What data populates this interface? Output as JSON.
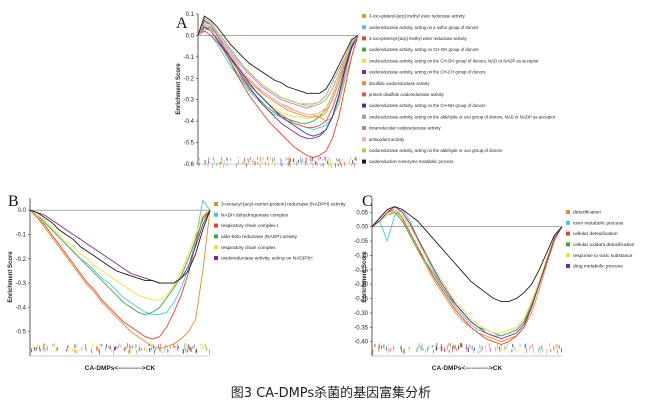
{
  "caption": "图3 CA-DMPs杀菌的基因富集分析",
  "chart_data": [
    {
      "panel": "A",
      "type": "line",
      "ylabel": "Enrichment Score",
      "xlabel": "",
      "ylim": [
        -0.6,
        0.1
      ],
      "yticks": [
        "0.1",
        "0.0",
        "-0.1",
        "-0.2",
        "-0.3",
        "-0.4",
        "-0.5",
        "-0.6"
      ],
      "legend_position": "right",
      "x": [
        0,
        0.04,
        0.08,
        0.12,
        0.16,
        0.2,
        0.24,
        0.28,
        0.32,
        0.36,
        0.4,
        0.44,
        0.48,
        0.52,
        0.56,
        0.6,
        0.64,
        0.68,
        0.72,
        0.76,
        0.8,
        0.84,
        0.88,
        0.92,
        0.96,
        1.0
      ],
      "series": [
        {
          "name": "3-oxo-glutaryl-[acp] methyl ester reductase activity",
          "color": "#d9a21a",
          "values": [
            0,
            0.03,
            0.04,
            0.0,
            -0.05,
            -0.1,
            -0.14,
            -0.18,
            -0.21,
            -0.24,
            -0.26,
            -0.28,
            -0.3,
            -0.32,
            -0.33,
            -0.35,
            -0.36,
            -0.37,
            -0.37,
            -0.38,
            -0.4,
            -0.38,
            -0.32,
            -0.2,
            -0.1,
            0
          ]
        },
        {
          "name": "oxidoreductase activity, acting on a sulfur group of donors",
          "color": "#4ec3dd",
          "values": [
            0,
            0.02,
            0.0,
            -0.04,
            -0.09,
            -0.14,
            -0.18,
            -0.22,
            -0.26,
            -0.29,
            -0.32,
            -0.35,
            -0.37,
            -0.38,
            -0.4,
            -0.41,
            -0.42,
            -0.43,
            -0.44,
            -0.43,
            -0.42,
            -0.38,
            -0.3,
            -0.18,
            -0.06,
            0
          ]
        },
        {
          "name": "3-oxo-pimeloyl-[acp] methyl ester reductase activity",
          "color": "#e0432f",
          "values": [
            0,
            0.06,
            0.05,
            0.0,
            -0.06,
            -0.12,
            -0.18,
            -0.23,
            -0.28,
            -0.32,
            -0.36,
            -0.4,
            -0.43,
            -0.46,
            -0.49,
            -0.52,
            -0.54,
            -0.56,
            -0.57,
            -0.56,
            -0.54,
            -0.48,
            -0.38,
            -0.24,
            -0.1,
            0
          ]
        },
        {
          "name": "oxidoreductase activity, acting on CH-OH group of donors",
          "color": "#3fa642",
          "values": [
            0,
            0.04,
            0.03,
            -0.02,
            -0.07,
            -0.12,
            -0.17,
            -0.21,
            -0.25,
            -0.28,
            -0.31,
            -0.34,
            -0.36,
            -0.38,
            -0.39,
            -0.4,
            -0.41,
            -0.41,
            -0.4,
            -0.38,
            -0.34,
            -0.28,
            -0.2,
            -0.12,
            -0.04,
            0
          ]
        },
        {
          "name": "oxidoreductase activity, acting on the CH-OH group of donors, NAD or NADP as acceptor",
          "color": "#f3dc3a",
          "values": [
            0,
            0.05,
            0.04,
            0.0,
            -0.05,
            -0.1,
            -0.15,
            -0.19,
            -0.23,
            -0.26,
            -0.29,
            -0.32,
            -0.34,
            -0.36,
            -0.37,
            -0.38,
            -0.38,
            -0.39,
            -0.38,
            -0.37,
            -0.35,
            -0.3,
            -0.22,
            -0.13,
            -0.05,
            0
          ]
        },
        {
          "name": "oxidoreductase activity, acting on the CH-CH group of donors",
          "color": "#7a2b8c",
          "values": [
            0,
            0.07,
            0.05,
            0.0,
            -0.05,
            -0.1,
            -0.15,
            -0.2,
            -0.24,
            -0.28,
            -0.32,
            -0.35,
            -0.38,
            -0.41,
            -0.43,
            -0.45,
            -0.47,
            -0.48,
            -0.48,
            -0.47,
            -0.44,
            -0.38,
            -0.28,
            -0.16,
            -0.06,
            0
          ]
        },
        {
          "name": "disulfide oxidoreductase activity",
          "color": "#ef8a2a",
          "values": [
            0,
            0.03,
            0.02,
            -0.02,
            -0.06,
            -0.1,
            -0.14,
            -0.18,
            -0.21,
            -0.24,
            -0.27,
            -0.29,
            -0.31,
            -0.33,
            -0.35,
            -0.36,
            -0.37,
            -0.38,
            -0.38,
            -0.38,
            -0.36,
            -0.3,
            -0.22,
            -0.12,
            -0.04,
            0
          ]
        },
        {
          "name": "protein disulfide oxidoreductase activity",
          "color": "#e85050",
          "values": [
            0,
            0.02,
            0.0,
            -0.03,
            -0.07,
            -0.11,
            -0.15,
            -0.19,
            -0.23,
            -0.26,
            -0.29,
            -0.32,
            -0.35,
            -0.37,
            -0.39,
            -0.41,
            -0.42,
            -0.43,
            -0.43,
            -0.42,
            -0.4,
            -0.34,
            -0.25,
            -0.14,
            -0.05,
            0
          ]
        },
        {
          "name": "oxidoreductase activity, acting on the CH-NH group of donors",
          "color": "#2b3f9a",
          "values": [
            0,
            0.04,
            0.02,
            -0.02,
            -0.06,
            -0.1,
            -0.14,
            -0.18,
            -0.22,
            -0.26,
            -0.29,
            -0.32,
            -0.35,
            -0.38,
            -0.4,
            -0.42,
            -0.44,
            -0.46,
            -0.47,
            -0.46,
            -0.44,
            -0.38,
            -0.28,
            -0.15,
            -0.05,
            0
          ]
        },
        {
          "name": "oxidoreductase activity, acting on the aldehyde or oxo group of donors, NAD or NADP as acceptor",
          "color": "#9e9e9e",
          "values": [
            0,
            0.08,
            0.06,
            0.02,
            -0.02,
            -0.06,
            -0.1,
            -0.14,
            -0.17,
            -0.2,
            -0.23,
            -0.25,
            -0.27,
            -0.29,
            -0.3,
            -0.31,
            -0.32,
            -0.32,
            -0.32,
            -0.31,
            -0.28,
            -0.22,
            -0.16,
            -0.1,
            -0.04,
            0
          ]
        },
        {
          "name": "intramolecular oxidoreductase activity",
          "color": "#c07ad8",
          "values": [
            0,
            0.05,
            0.04,
            0.0,
            -0.04,
            -0.08,
            -0.12,
            -0.15,
            -0.18,
            -0.21,
            -0.24,
            -0.26,
            -0.28,
            -0.3,
            -0.31,
            -0.32,
            -0.33,
            -0.34,
            -0.33,
            -0.32,
            -0.3,
            -0.25,
            -0.18,
            -0.1,
            -0.03,
            0
          ]
        },
        {
          "name": "antioxidant activity",
          "color": "#f0a8c8",
          "values": [
            0,
            0.03,
            0.02,
            -0.01,
            -0.05,
            -0.09,
            -0.13,
            -0.17,
            -0.2,
            -0.23,
            -0.26,
            -0.28,
            -0.3,
            -0.32,
            -0.34,
            -0.35,
            -0.36,
            -0.37,
            -0.37,
            -0.36,
            -0.34,
            -0.28,
            -0.2,
            -0.11,
            -0.04,
            0
          ]
        },
        {
          "name": "oxidoreductase activity, acting on the aldehyde or oxo group of donors",
          "color": "#b5cc3a",
          "values": [
            0,
            0.06,
            0.05,
            0.01,
            -0.03,
            -0.07,
            -0.11,
            -0.14,
            -0.17,
            -0.2,
            -0.23,
            -0.25,
            -0.27,
            -0.29,
            -0.3,
            -0.31,
            -0.32,
            -0.33,
            -0.33,
            -0.32,
            -0.3,
            -0.25,
            -0.18,
            -0.1,
            -0.03,
            0
          ]
        },
        {
          "name": "oxidoreduction coenzyme metabolic process",
          "color": "#1a1a1a",
          "values": [
            0,
            0.09,
            0.07,
            0.04,
            0.0,
            -0.04,
            -0.07,
            -0.1,
            -0.13,
            -0.15,
            -0.17,
            -0.19,
            -0.21,
            -0.22,
            -0.24,
            -0.25,
            -0.26,
            -0.27,
            -0.27,
            -0.27,
            -0.25,
            -0.2,
            -0.14,
            -0.08,
            -0.02,
            0
          ]
        }
      ]
    },
    {
      "panel": "B",
      "type": "line",
      "ylabel": "Enrichment Score",
      "xlabel": "CA-DMPs<----------->CK",
      "ylim": [
        -0.6,
        0.05
      ],
      "yticks": [
        "0.0",
        "-0.1",
        "-0.2",
        "-0.3",
        "-0.4",
        "-0.5"
      ],
      "legend_position": "right",
      "x": [
        0,
        0.04,
        0.08,
        0.12,
        0.16,
        0.2,
        0.24,
        0.28,
        0.32,
        0.36,
        0.4,
        0.44,
        0.48,
        0.52,
        0.56,
        0.6,
        0.64,
        0.68,
        0.72,
        0.76,
        0.8,
        0.84,
        0.88,
        0.92,
        0.96,
        1.0
      ],
      "series": [
        {
          "name": "3-oxoacyl-[acyl-carrier-protein] reductase (NADPH) activity",
          "color": "#ef8a2a",
          "values": [
            0,
            -0.03,
            -0.07,
            -0.11,
            -0.15,
            -0.19,
            -0.23,
            -0.27,
            -0.31,
            -0.34,
            -0.38,
            -0.41,
            -0.44,
            -0.47,
            -0.5,
            -0.52,
            -0.54,
            -0.56,
            -0.57,
            -0.56,
            -0.55,
            -0.53,
            -0.5,
            -0.45,
            -0.25,
            0
          ]
        },
        {
          "name": "NADH dehydrogenase complex",
          "color": "#4ec3dd",
          "values": [
            0,
            -0.02,
            -0.05,
            -0.08,
            -0.11,
            -0.14,
            -0.17,
            -0.2,
            -0.22,
            -0.25,
            -0.28,
            -0.3,
            -0.33,
            -0.36,
            -0.38,
            -0.4,
            -0.42,
            -0.43,
            -0.43,
            -0.42,
            -0.38,
            -0.32,
            -0.24,
            -0.12,
            0.04,
            0
          ]
        },
        {
          "name": "respiratory chain complex I",
          "color": "#e0432f",
          "values": [
            0,
            -0.03,
            -0.06,
            -0.1,
            -0.14,
            -0.18,
            -0.22,
            -0.26,
            -0.3,
            -0.33,
            -0.37,
            -0.4,
            -0.43,
            -0.46,
            -0.48,
            -0.5,
            -0.52,
            -0.53,
            -0.52,
            -0.48,
            -0.42,
            -0.35,
            -0.26,
            -0.14,
            -0.03,
            0
          ]
        },
        {
          "name": "aldo-keto reductase (NADP) activity",
          "color": "#3fa642",
          "values": [
            0,
            -0.02,
            -0.05,
            -0.08,
            -0.11,
            -0.14,
            -0.17,
            -0.2,
            -0.23,
            -0.26,
            -0.29,
            -0.32,
            -0.35,
            -0.38,
            -0.4,
            -0.42,
            -0.43,
            -0.42,
            -0.4,
            -0.36,
            -0.32,
            -0.27,
            -0.2,
            -0.12,
            -0.04,
            0
          ]
        },
        {
          "name": "respiratory chain complex",
          "color": "#f3dc3a",
          "values": [
            0,
            -0.02,
            -0.04,
            -0.07,
            -0.1,
            -0.13,
            -0.15,
            -0.18,
            -0.2,
            -0.23,
            -0.25,
            -0.27,
            -0.29,
            -0.31,
            -0.33,
            -0.35,
            -0.36,
            -0.37,
            -0.37,
            -0.35,
            -0.31,
            -0.25,
            -0.18,
            -0.1,
            -0.02,
            0
          ]
        },
        {
          "name": "oxidoreductase activity, acting on NAD(P)H",
          "color": "#7a2b8c",
          "values": [
            0,
            -0.01,
            -0.02,
            -0.04,
            -0.06,
            -0.08,
            -0.1,
            -0.12,
            -0.14,
            -0.16,
            -0.18,
            -0.2,
            -0.22,
            -0.24,
            -0.26,
            -0.27,
            -0.28,
            -0.29,
            -0.3,
            -0.3,
            -0.3,
            -0.28,
            -0.23,
            -0.15,
            -0.06,
            0
          ]
        },
        {
          "name": "",
          "color": "#1a1a1a",
          "values": [
            0,
            -0.01,
            -0.03,
            -0.05,
            -0.08,
            -0.1,
            -0.12,
            -0.15,
            -0.17,
            -0.19,
            -0.21,
            -0.23,
            -0.25,
            -0.26,
            -0.27,
            -0.28,
            -0.29,
            -0.29,
            -0.3,
            -0.3,
            -0.3,
            -0.28,
            -0.25,
            -0.18,
            -0.08,
            0
          ]
        }
      ]
    },
    {
      "panel": "C",
      "type": "line",
      "ylabel": "Enrichment Score",
      "xlabel": "CA-DMPs<----------->CK",
      "ylim": [
        -0.45,
        0.1
      ],
      "yticks": [
        "0.05",
        "0.00",
        "-0.05",
        "-0.10",
        "-0.15",
        "-0.20",
        "-0.25",
        "-0.30",
        "-0.35",
        "-0.40"
      ],
      "legend_position": "right",
      "x": [
        0,
        0.04,
        0.08,
        0.12,
        0.16,
        0.2,
        0.24,
        0.28,
        0.32,
        0.36,
        0.4,
        0.44,
        0.48,
        0.52,
        0.56,
        0.6,
        0.64,
        0.68,
        0.72,
        0.76,
        0.8,
        0.84,
        0.88,
        0.92,
        0.96,
        1.0
      ],
      "series": [
        {
          "name": "detoxification",
          "color": "#ef8a2a",
          "values": [
            0,
            0.03,
            0.06,
            0.05,
            0.02,
            -0.03,
            -0.08,
            -0.13,
            -0.18,
            -0.22,
            -0.26,
            -0.3,
            -0.33,
            -0.35,
            -0.37,
            -0.38,
            -0.39,
            -0.4,
            -0.39,
            -0.38,
            -0.35,
            -0.3,
            -0.22,
            -0.13,
            -0.05,
            0
          ]
        },
        {
          "name": "toxin metabolic process",
          "color": "#4ec3dd",
          "values": [
            0,
            0.02,
            -0.05,
            0.04,
            0.06,
            0.02,
            -0.04,
            -0.1,
            -0.15,
            -0.2,
            -0.24,
            -0.28,
            -0.31,
            -0.34,
            -0.36,
            -0.37,
            -0.38,
            -0.38,
            -0.37,
            -0.36,
            -0.33,
            -0.28,
            -0.2,
            -0.12,
            -0.04,
            0
          ]
        },
        {
          "name": "cellular detoxification",
          "color": "#e0432f",
          "values": [
            0,
            0.02,
            0.05,
            0.06,
            0.03,
            -0.02,
            -0.07,
            -0.12,
            -0.17,
            -0.21,
            -0.25,
            -0.29,
            -0.32,
            -0.35,
            -0.37,
            -0.39,
            -0.4,
            -0.41,
            -0.4,
            -0.38,
            -0.35,
            -0.28,
            -0.2,
            -0.12,
            -0.04,
            0
          ]
        },
        {
          "name": "cellular oxidant detoxification",
          "color": "#3fa642",
          "values": [
            0,
            0.02,
            0.04,
            0.05,
            0.02,
            -0.03,
            -0.08,
            -0.12,
            -0.16,
            -0.2,
            -0.24,
            -0.27,
            -0.3,
            -0.33,
            -0.35,
            -0.36,
            -0.37,
            -0.38,
            -0.37,
            -0.36,
            -0.33,
            -0.27,
            -0.2,
            -0.12,
            -0.04,
            0
          ]
        },
        {
          "name": "response to toxic substance",
          "color": "#f3dc3a",
          "values": [
            0,
            0.02,
            0.04,
            0.06,
            0.04,
            0.0,
            -0.05,
            -0.1,
            -0.14,
            -0.18,
            -0.22,
            -0.26,
            -0.29,
            -0.32,
            -0.34,
            -0.36,
            -0.37,
            -0.37,
            -0.36,
            -0.35,
            -0.32,
            -0.26,
            -0.19,
            -0.11,
            -0.04,
            0
          ]
        },
        {
          "name": "drug metabolic process",
          "color": "#7a2b8c",
          "values": [
            0,
            0.02,
            0.05,
            0.07,
            0.05,
            0.01,
            -0.04,
            -0.09,
            -0.14,
            -0.19,
            -0.23,
            -0.27,
            -0.3,
            -0.33,
            -0.35,
            -0.37,
            -0.38,
            -0.39,
            -0.38,
            -0.37,
            -0.34,
            -0.28,
            -0.2,
            -0.12,
            -0.04,
            0
          ]
        },
        {
          "name": "",
          "color": "#1a1a1a",
          "values": [
            0,
            0.03,
            0.06,
            0.07,
            0.06,
            0.04,
            0.02,
            -0.01,
            -0.04,
            -0.07,
            -0.1,
            -0.13,
            -0.16,
            -0.19,
            -0.21,
            -0.23,
            -0.25,
            -0.26,
            -0.26,
            -0.25,
            -0.23,
            -0.2,
            -0.15,
            -0.09,
            -0.03,
            0
          ]
        }
      ]
    }
  ]
}
